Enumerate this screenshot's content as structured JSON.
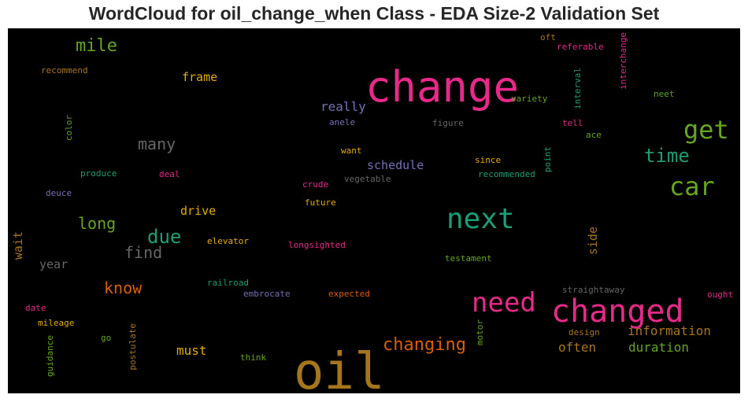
{
  "chart_data": {
    "type": "wordcloud",
    "title": "WordCloud for oil_change_when Class - EDA Size-2 Validation Set",
    "background": "#000000",
    "words": [
      {
        "text": "oil",
        "size": 64,
        "color": "#a6761d",
        "rot": 0
      },
      {
        "text": "change",
        "size": 54,
        "color": "#e7298a",
        "rot": 0
      },
      {
        "text": "changed",
        "size": 40,
        "color": "#e7298a",
        "rot": 0
      },
      {
        "text": "next",
        "size": 36,
        "color": "#1b9e77",
        "rot": 0
      },
      {
        "text": "need",
        "size": 34,
        "color": "#e7298a",
        "rot": 0
      },
      {
        "text": "get",
        "size": 32,
        "color": "#66a61e",
        "rot": 0
      },
      {
        "text": "car",
        "size": 32,
        "color": "#66a61e",
        "rot": 0
      },
      {
        "text": "changing",
        "size": 22,
        "color": "#d95f02",
        "rot": 0
      },
      {
        "text": "time",
        "size": 24,
        "color": "#1b9e77",
        "rot": 0
      },
      {
        "text": "due",
        "size": 24,
        "color": "#1b9e77",
        "rot": 0
      },
      {
        "text": "mile",
        "size": 22,
        "color": "#66a61e",
        "rot": 0
      },
      {
        "text": "many",
        "size": 20,
        "color": "#666666",
        "rot": 0
      },
      {
        "text": "find",
        "size": 20,
        "color": "#666666",
        "rot": 0
      },
      {
        "text": "long",
        "size": 20,
        "color": "#66a61e",
        "rot": 0
      },
      {
        "text": "know",
        "size": 20,
        "color": "#d95f02",
        "rot": 0
      },
      {
        "text": "really",
        "size": 16,
        "color": "#7570b3",
        "rot": 0
      },
      {
        "text": "schedule",
        "size": 15,
        "color": "#7570b3",
        "rot": 0
      },
      {
        "text": "information",
        "size": 16,
        "color": "#a6761d",
        "rot": 0
      },
      {
        "text": "duration",
        "size": 16,
        "color": "#66a61e",
        "rot": 0
      },
      {
        "text": "often",
        "size": 16,
        "color": "#a6761d",
        "rot": 0
      },
      {
        "text": "frame",
        "size": 15,
        "color": "#e6ab02",
        "rot": 0
      },
      {
        "text": "drive",
        "size": 15,
        "color": "#e6ab02",
        "rot": 0
      },
      {
        "text": "must",
        "size": 16,
        "color": "#e6ab02",
        "rot": 0
      },
      {
        "text": "year",
        "size": 15,
        "color": "#666666",
        "rot": 0
      },
      {
        "text": "wait",
        "size": 15,
        "color": "#a6761d",
        "rot": -90
      },
      {
        "text": "side",
        "size": 15,
        "color": "#a6761d",
        "rot": -90
      },
      {
        "text": "recommend",
        "size": 11,
        "color": "#a6761d",
        "rot": 0
      },
      {
        "text": "color",
        "size": 11,
        "color": "#66a61e",
        "rot": -90
      },
      {
        "text": "produce",
        "size": 11,
        "color": "#1b9e77",
        "rot": 0
      },
      {
        "text": "deal",
        "size": 11,
        "color": "#e7298a",
        "rot": 0
      },
      {
        "text": "deuce",
        "size": 11,
        "color": "#7570b3",
        "rot": 0
      },
      {
        "text": "anele",
        "size": 11,
        "color": "#7570b3",
        "rot": 0
      },
      {
        "text": "figure",
        "size": 11,
        "color": "#666666",
        "rot": 0
      },
      {
        "text": "want",
        "size": 11,
        "color": "#e6ab02",
        "rot": 0
      },
      {
        "text": "since",
        "size": 11,
        "color": "#e6ab02",
        "rot": 0
      },
      {
        "text": "crude",
        "size": 11,
        "color": "#e7298a",
        "rot": 0
      },
      {
        "text": "vegetable",
        "size": 11,
        "color": "#666666",
        "rot": 0
      },
      {
        "text": "future",
        "size": 11,
        "color": "#e6ab02",
        "rot": 0
      },
      {
        "text": "recommended",
        "size": 11,
        "color": "#1b9e77",
        "rot": 0
      },
      {
        "text": "point",
        "size": 11,
        "color": "#1b9e77",
        "rot": -90
      },
      {
        "text": "elevator",
        "size": 11,
        "color": "#e6ab02",
        "rot": 0
      },
      {
        "text": "longsighted",
        "size": 11,
        "color": "#e7298a",
        "rot": 0
      },
      {
        "text": "testament",
        "size": 11,
        "color": "#66a61e",
        "rot": 0
      },
      {
        "text": "railroad",
        "size": 11,
        "color": "#1b9e77",
        "rot": 0
      },
      {
        "text": "embrocate",
        "size": 11,
        "color": "#7570b3",
        "rot": 0
      },
      {
        "text": "expected",
        "size": 11,
        "color": "#d95f02",
        "rot": 0
      },
      {
        "text": "straightaway",
        "size": 11,
        "color": "#666666",
        "rot": 0
      },
      {
        "text": "ought",
        "size": 11,
        "color": "#e7298a",
        "rot": 0
      },
      {
        "text": "date",
        "size": 11,
        "color": "#e7298a",
        "rot": 0
      },
      {
        "text": "mileage",
        "size": 11,
        "color": "#e6ab02",
        "rot": 0
      },
      {
        "text": "go",
        "size": 11,
        "color": "#66a61e",
        "rot": 0
      },
      {
        "text": "guidance",
        "size": 11,
        "color": "#66a61e",
        "rot": -90
      },
      {
        "text": "postulate",
        "size": 11,
        "color": "#a6761d",
        "rot": -90
      },
      {
        "text": "think",
        "size": 11,
        "color": "#66a61e",
        "rot": 0
      },
      {
        "text": "design",
        "size": 11,
        "color": "#a6761d",
        "rot": 0
      },
      {
        "text": "motor",
        "size": 11,
        "color": "#66a61e",
        "rot": -90
      },
      {
        "text": "oft",
        "size": 11,
        "color": "#a6761d",
        "rot": 0
      },
      {
        "text": "referable",
        "size": 11,
        "color": "#e7298a",
        "rot": 0
      },
      {
        "text": "interchange",
        "size": 11,
        "color": "#e7298a",
        "rot": -90
      },
      {
        "text": "variety",
        "size": 11,
        "color": "#66a61e",
        "rot": 0
      },
      {
        "text": "interval",
        "size": 11,
        "color": "#1b9e77",
        "rot": -90
      },
      {
        "text": "neet",
        "size": 11,
        "color": "#66a61e",
        "rot": 0
      },
      {
        "text": "tell",
        "size": 11,
        "color": "#e7298a",
        "rot": 0
      },
      {
        "text": "ace",
        "size": 11,
        "color": "#66a61e",
        "rot": 0
      }
    ]
  }
}
